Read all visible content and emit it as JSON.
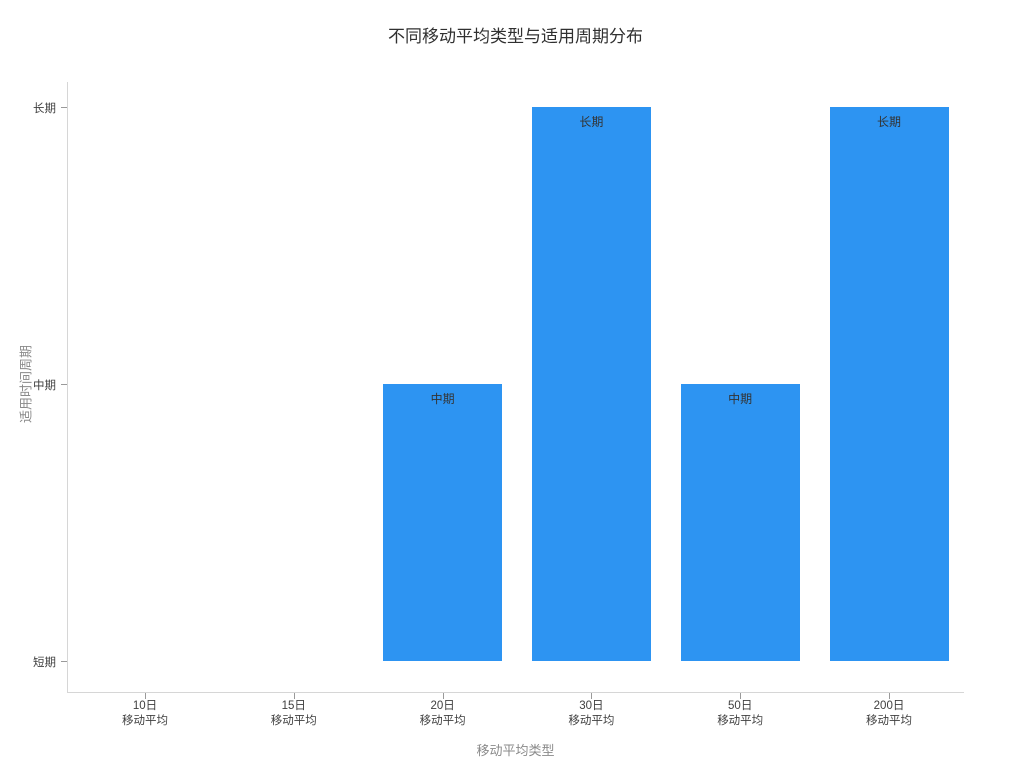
{
  "chart_data": {
    "type": "bar",
    "title": "不同移动平均类型与适用周期分布",
    "xlabel": "移动平均类型",
    "ylabel": "适用时间周期",
    "categories": [
      "10日",
      "15日",
      "20日",
      "30日",
      "50日",
      "200日"
    ],
    "category_sublabel": "移动平均",
    "values": [
      "短期",
      "短期",
      "中期",
      "长期",
      "中期",
      "长期"
    ],
    "value_scale": {
      "短期": 0,
      "中期": 1,
      "长期": 2
    },
    "bar_labels": [
      "",
      "",
      "中期",
      "长期",
      "中期",
      "长期"
    ],
    "y_ticks": [
      {
        "label": "短期",
        "value": 0
      },
      {
        "label": "中期",
        "value": 1
      },
      {
        "label": "长期",
        "value": 2
      }
    ],
    "ylim": [
      0,
      2.1
    ],
    "grid": false,
    "legend": null,
    "bar_color": "#2D94F2",
    "bar_label_color": "#333333",
    "title_color": "#303030",
    "tick_label_color": "#3f3f3f",
    "axis_title_color": "#8a8a8a",
    "axis_line_color": "#d6d6d6",
    "background_color": "#ffffff"
  }
}
